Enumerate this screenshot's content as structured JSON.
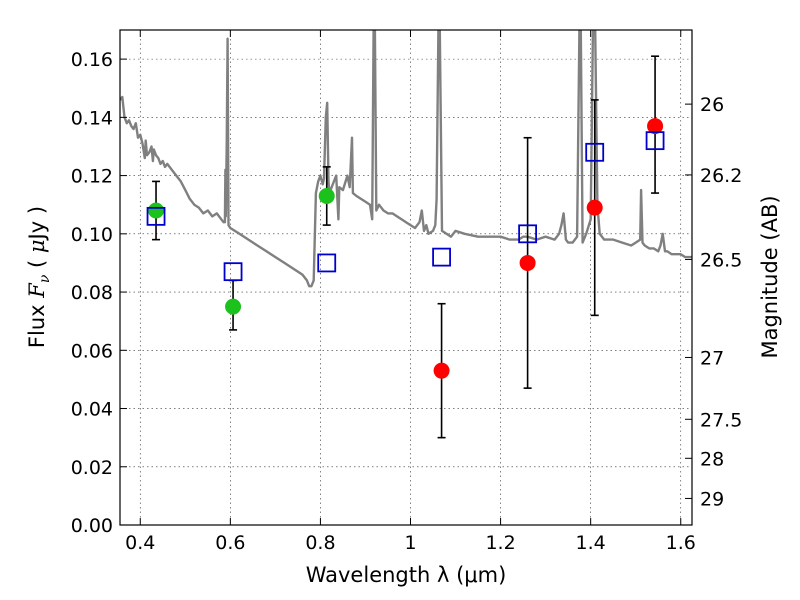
{
  "chart_data": {
    "type": "scatter",
    "xlabel": "Wavelength  λ (μm)",
    "ylabel": "Flux  F_ν  ( μJy )",
    "ylabel_parts": {
      "pre": "Flux  ",
      "var": "F",
      "sub": "ν",
      "post": "  ( ",
      "unit_mu": "μ",
      "unit": "Jy )"
    },
    "y2label": "Magnitude (AB)",
    "xlim": [
      0.355,
      1.625
    ],
    "ylim": [
      0.0,
      0.17
    ],
    "grid": true,
    "xticks": [
      {
        "v": 0.4,
        "label": "0.4"
      },
      {
        "v": 0.6,
        "label": "0.6"
      },
      {
        "v": 0.8,
        "label": "0.8"
      },
      {
        "v": 1.0,
        "label": "1"
      },
      {
        "v": 1.2,
        "label": "1.2"
      },
      {
        "v": 1.4,
        "label": "1.4"
      },
      {
        "v": 1.6,
        "label": "1.6"
      }
    ],
    "yticks": [
      {
        "v": 0.0,
        "label": "0.00"
      },
      {
        "v": 0.02,
        "label": "0.02"
      },
      {
        "v": 0.04,
        "label": "0.04"
      },
      {
        "v": 0.06,
        "label": "0.06"
      },
      {
        "v": 0.08,
        "label": "0.08"
      },
      {
        "v": 0.1,
        "label": "0.10"
      },
      {
        "v": 0.12,
        "label": "0.12"
      },
      {
        "v": 0.14,
        "label": "0.14"
      },
      {
        "v": 0.16,
        "label": "0.16"
      }
    ],
    "y2ticks": [
      {
        "v": 26,
        "label": "26"
      },
      {
        "v": 26.2,
        "label": "26.2"
      },
      {
        "v": 26.5,
        "label": "26.5"
      },
      {
        "v": 27,
        "label": "27"
      },
      {
        "v": 27.5,
        "label": "27.5"
      },
      {
        "v": 28,
        "label": "28"
      },
      {
        "v": 29,
        "label": "29"
      }
    ],
    "colors": {
      "template": "#808080",
      "green": "#1cc21c",
      "red": "#ff0000",
      "model": "#0000cc",
      "errorbar": "#000000"
    },
    "series": [
      {
        "marker": "circle",
        "color_key": "green",
        "points": [
          {
            "x": 0.435,
            "y": 0.108,
            "err_lo": 0.098,
            "err_hi": 0.118
          },
          {
            "x": 0.606,
            "y": 0.075,
            "err_lo": 0.067,
            "err_hi": 0.084
          },
          {
            "x": 0.814,
            "y": 0.113,
            "err_lo": 0.103,
            "err_hi": 0.123
          }
        ]
      },
      {
        "marker": "circle",
        "color_key": "red",
        "points": [
          {
            "x": 1.069,
            "y": 0.053,
            "err_lo": 0.03,
            "err_hi": 0.076
          },
          {
            "x": 1.26,
            "y": 0.09,
            "err_lo": 0.047,
            "err_hi": 0.133
          },
          {
            "x": 1.409,
            "y": 0.109,
            "err_lo": 0.072,
            "err_hi": 0.146
          },
          {
            "x": 1.543,
            "y": 0.137,
            "err_lo": 0.114,
            "err_hi": 0.161
          }
        ]
      },
      {
        "marker": "open-square",
        "color_key": "model",
        "points": [
          {
            "x": 0.435,
            "y": 0.106
          },
          {
            "x": 0.606,
            "y": 0.087
          },
          {
            "x": 0.814,
            "y": 0.09
          },
          {
            "x": 1.069,
            "y": 0.092
          },
          {
            "x": 1.26,
            "y": 0.1
          },
          {
            "x": 1.409,
            "y": 0.128
          },
          {
            "x": 1.543,
            "y": 0.132
          }
        ]
      }
    ],
    "template_spectrum": [
      [
        0.355,
        0.146
      ],
      [
        0.36,
        0.147
      ],
      [
        0.365,
        0.14
      ],
      [
        0.37,
        0.138
      ],
      [
        0.375,
        0.139
      ],
      [
        0.38,
        0.137
      ],
      [
        0.385,
        0.136
      ],
      [
        0.39,
        0.138
      ],
      [
        0.395,
        0.133
      ],
      [
        0.4,
        0.134
      ],
      [
        0.405,
        0.131
      ],
      [
        0.41,
        0.126
      ],
      [
        0.412,
        0.132
      ],
      [
        0.415,
        0.127
      ],
      [
        0.42,
        0.128
      ],
      [
        0.425,
        0.13
      ],
      [
        0.428,
        0.125
      ],
      [
        0.43,
        0.129
      ],
      [
        0.435,
        0.127
      ],
      [
        0.44,
        0.126
      ],
      [
        0.445,
        0.124
      ],
      [
        0.45,
        0.125
      ],
      [
        0.455,
        0.123
      ],
      [
        0.46,
        0.124
      ],
      [
        0.47,
        0.122
      ],
      [
        0.48,
        0.12
      ],
      [
        0.49,
        0.118
      ],
      [
        0.5,
        0.115
      ],
      [
        0.51,
        0.112
      ],
      [
        0.52,
        0.11
      ],
      [
        0.53,
        0.109
      ],
      [
        0.54,
        0.107
      ],
      [
        0.55,
        0.108
      ],
      [
        0.56,
        0.106
      ],
      [
        0.57,
        0.107
      ],
      [
        0.58,
        0.105
      ],
      [
        0.585,
        0.104
      ],
      [
        0.588,
        0.104
      ],
      [
        0.589,
        0.122
      ],
      [
        0.59,
        0.106
      ],
      [
        0.592,
        0.13
      ],
      [
        0.594,
        0.167
      ],
      [
        0.596,
        0.103
      ],
      [
        0.6,
        0.102
      ],
      [
        0.62,
        0.1
      ],
      [
        0.64,
        0.098
      ],
      [
        0.66,
        0.096
      ],
      [
        0.68,
        0.094
      ],
      [
        0.7,
        0.092
      ],
      [
        0.72,
        0.09
      ],
      [
        0.74,
        0.088
      ],
      [
        0.76,
        0.086
      ],
      [
        0.77,
        0.084
      ],
      [
        0.775,
        0.082
      ],
      [
        0.78,
        0.082
      ],
      [
        0.785,
        0.084
      ],
      [
        0.79,
        0.114
      ],
      [
        0.795,
        0.118
      ],
      [
        0.8,
        0.12
      ],
      [
        0.805,
        0.117
      ],
      [
        0.808,
        0.119
      ],
      [
        0.812,
        0.14
      ],
      [
        0.815,
        0.145
      ],
      [
        0.818,
        0.118
      ],
      [
        0.82,
        0.114
      ],
      [
        0.83,
        0.118
      ],
      [
        0.835,
        0.12
      ],
      [
        0.84,
        0.105
      ],
      [
        0.842,
        0.116
      ],
      [
        0.85,
        0.115
      ],
      [
        0.86,
        0.12
      ],
      [
        0.865,
        0.116
      ],
      [
        0.87,
        0.133
      ],
      [
        0.872,
        0.114
      ],
      [
        0.88,
        0.113
      ],
      [
        0.89,
        0.112
      ],
      [
        0.9,
        0.111
      ],
      [
        0.91,
        0.11
      ],
      [
        0.915,
        0.105
      ],
      [
        0.918,
        0.17
      ],
      [
        0.921,
        0.17
      ],
      [
        0.924,
        0.108
      ],
      [
        0.93,
        0.11
      ],
      [
        0.94,
        0.108
      ],
      [
        0.95,
        0.107
      ],
      [
        0.96,
        0.107
      ],
      [
        0.97,
        0.106
      ],
      [
        0.98,
        0.105
      ],
      [
        0.99,
        0.104
      ],
      [
        1.0,
        0.103
      ],
      [
        1.01,
        0.102
      ],
      [
        1.02,
        0.104
      ],
      [
        1.025,
        0.108
      ],
      [
        1.03,
        0.101
      ],
      [
        1.035,
        0.103
      ],
      [
        1.04,
        0.1
      ],
      [
        1.05,
        0.101
      ],
      [
        1.055,
        0.103
      ],
      [
        1.058,
        0.112
      ],
      [
        1.062,
        0.17
      ],
      [
        1.065,
        0.17
      ],
      [
        1.07,
        0.101
      ],
      [
        1.08,
        0.1
      ],
      [
        1.09,
        0.099
      ],
      [
        1.1,
        0.101
      ],
      [
        1.12,
        0.1
      ],
      [
        1.15,
        0.099
      ],
      [
        1.18,
        0.099
      ],
      [
        1.2,
        0.099
      ],
      [
        1.22,
        0.098
      ],
      [
        1.24,
        0.098
      ],
      [
        1.25,
        0.099
      ],
      [
        1.26,
        0.099
      ],
      [
        1.28,
        0.098
      ],
      [
        1.3,
        0.099
      ],
      [
        1.32,
        0.098
      ],
      [
        1.33,
        0.1
      ],
      [
        1.335,
        0.103
      ],
      [
        1.34,
        0.107
      ],
      [
        1.345,
        0.098
      ],
      [
        1.35,
        0.097
      ],
      [
        1.36,
        0.097
      ],
      [
        1.37,
        0.099
      ],
      [
        1.375,
        0.17
      ],
      [
        1.378,
        0.17
      ],
      [
        1.382,
        0.097
      ],
      [
        1.39,
        0.1
      ],
      [
        1.4,
        0.105
      ],
      [
        1.405,
        0.17
      ],
      [
        1.41,
        0.17
      ],
      [
        1.415,
        0.11
      ],
      [
        1.42,
        0.1
      ],
      [
        1.43,
        0.098
      ],
      [
        1.45,
        0.098
      ],
      [
        1.47,
        0.097
      ],
      [
        1.49,
        0.096
      ],
      [
        1.5,
        0.097
      ],
      [
        1.51,
        0.098
      ],
      [
        1.512,
        0.115
      ],
      [
        1.515,
        0.097
      ],
      [
        1.52,
        0.096
      ],
      [
        1.53,
        0.095
      ],
      [
        1.54,
        0.095
      ],
      [
        1.55,
        0.094
      ],
      [
        1.555,
        0.096
      ],
      [
        1.56,
        0.1
      ],
      [
        1.565,
        0.094
      ],
      [
        1.57,
        0.094
      ],
      [
        1.58,
        0.093
      ],
      [
        1.6,
        0.093
      ],
      [
        1.61,
        0.092
      ],
      [
        1.625,
        0.092
      ]
    ]
  }
}
